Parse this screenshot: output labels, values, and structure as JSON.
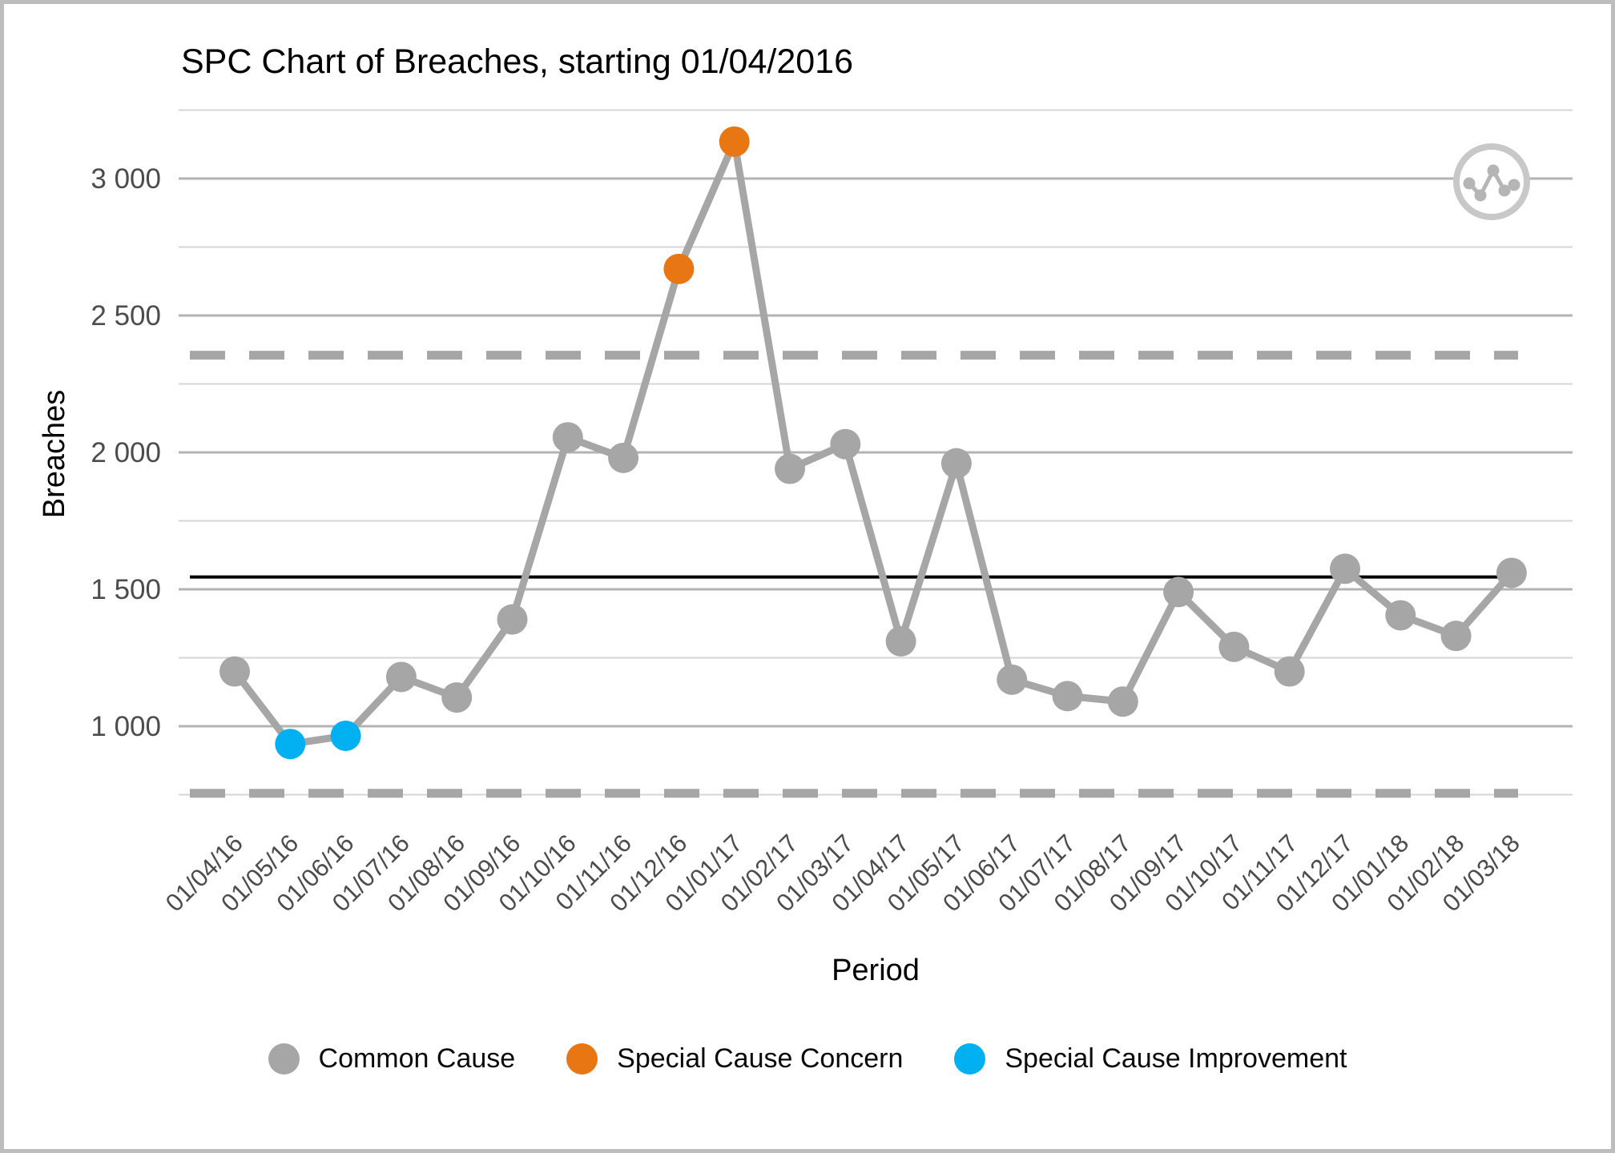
{
  "frame": {
    "border_color": "#bdbdbd",
    "background": "#ffffff"
  },
  "chart_data": {
    "type": "line",
    "subtype": "spc-control-chart",
    "title": "SPC Chart of Breaches, starting 01/04/2016",
    "xlabel": "Period",
    "ylabel": "Breaches",
    "categories": [
      "01/04/16",
      "01/05/16",
      "01/06/16",
      "01/07/16",
      "01/08/16",
      "01/09/16",
      "01/10/16",
      "01/11/16",
      "01/12/16",
      "01/01/17",
      "01/02/17",
      "01/03/17",
      "01/04/17",
      "01/05/17",
      "01/06/17",
      "01/07/17",
      "01/08/17",
      "01/09/17",
      "01/10/17",
      "01/11/17",
      "01/12/17",
      "01/01/18",
      "01/02/18",
      "01/03/18"
    ],
    "series": [
      {
        "name": "Breaches",
        "values": [
          1200,
          935,
          965,
          1180,
          1105,
          1390,
          2055,
          1980,
          2670,
          3135,
          1940,
          2030,
          1310,
          1960,
          1170,
          1110,
          1090,
          1490,
          1290,
          1200,
          1575,
          1405,
          1330,
          1560
        ]
      }
    ],
    "point_types": [
      "common",
      "improvement",
      "improvement",
      "common",
      "common",
      "common",
      "common",
      "common",
      "concern",
      "concern",
      "common",
      "common",
      "common",
      "common",
      "common",
      "common",
      "common",
      "common",
      "common",
      "common",
      "common",
      "common",
      "common",
      "common"
    ],
    "limits": {
      "upper_control_limit": 2355,
      "center_line": 1545,
      "lower_control_limit": 755
    },
    "y_ticks": [
      {
        "value": 1000,
        "label": "1 000"
      },
      {
        "value": 1500,
        "label": "1 500"
      },
      {
        "value": 2000,
        "label": "2 000"
      },
      {
        "value": 2500,
        "label": "2 500"
      },
      {
        "value": 3000,
        "label": "3 000"
      }
    ],
    "y_minor_grid_values": [
      750,
      1250,
      1750,
      2250,
      2750,
      3250
    ],
    "ylim": [
      750,
      3250
    ],
    "grid": "horizontal",
    "legend_position": "bottom",
    "colors": {
      "common": "#a6a6a6",
      "concern": "#e87612",
      "improvement": "#00b0f0",
      "line": "#a6a6a6",
      "center_line": "#000000",
      "limit_lines": "#a6a6a6",
      "grid_major": "#b3b3b3",
      "grid_minor": "#d6d6d6",
      "tick_text": "#4c4c4c"
    }
  },
  "legend": {
    "items": [
      {
        "label": "Common Cause",
        "type": "common"
      },
      {
        "label": "Special Cause Concern",
        "type": "concern"
      },
      {
        "label": "Special Cause Improvement",
        "type": "improvement"
      }
    ]
  },
  "icon": {
    "name": "run-chart-icon",
    "ring_color": "#c8c8c8",
    "glyph_color": "#b5b5b5"
  }
}
